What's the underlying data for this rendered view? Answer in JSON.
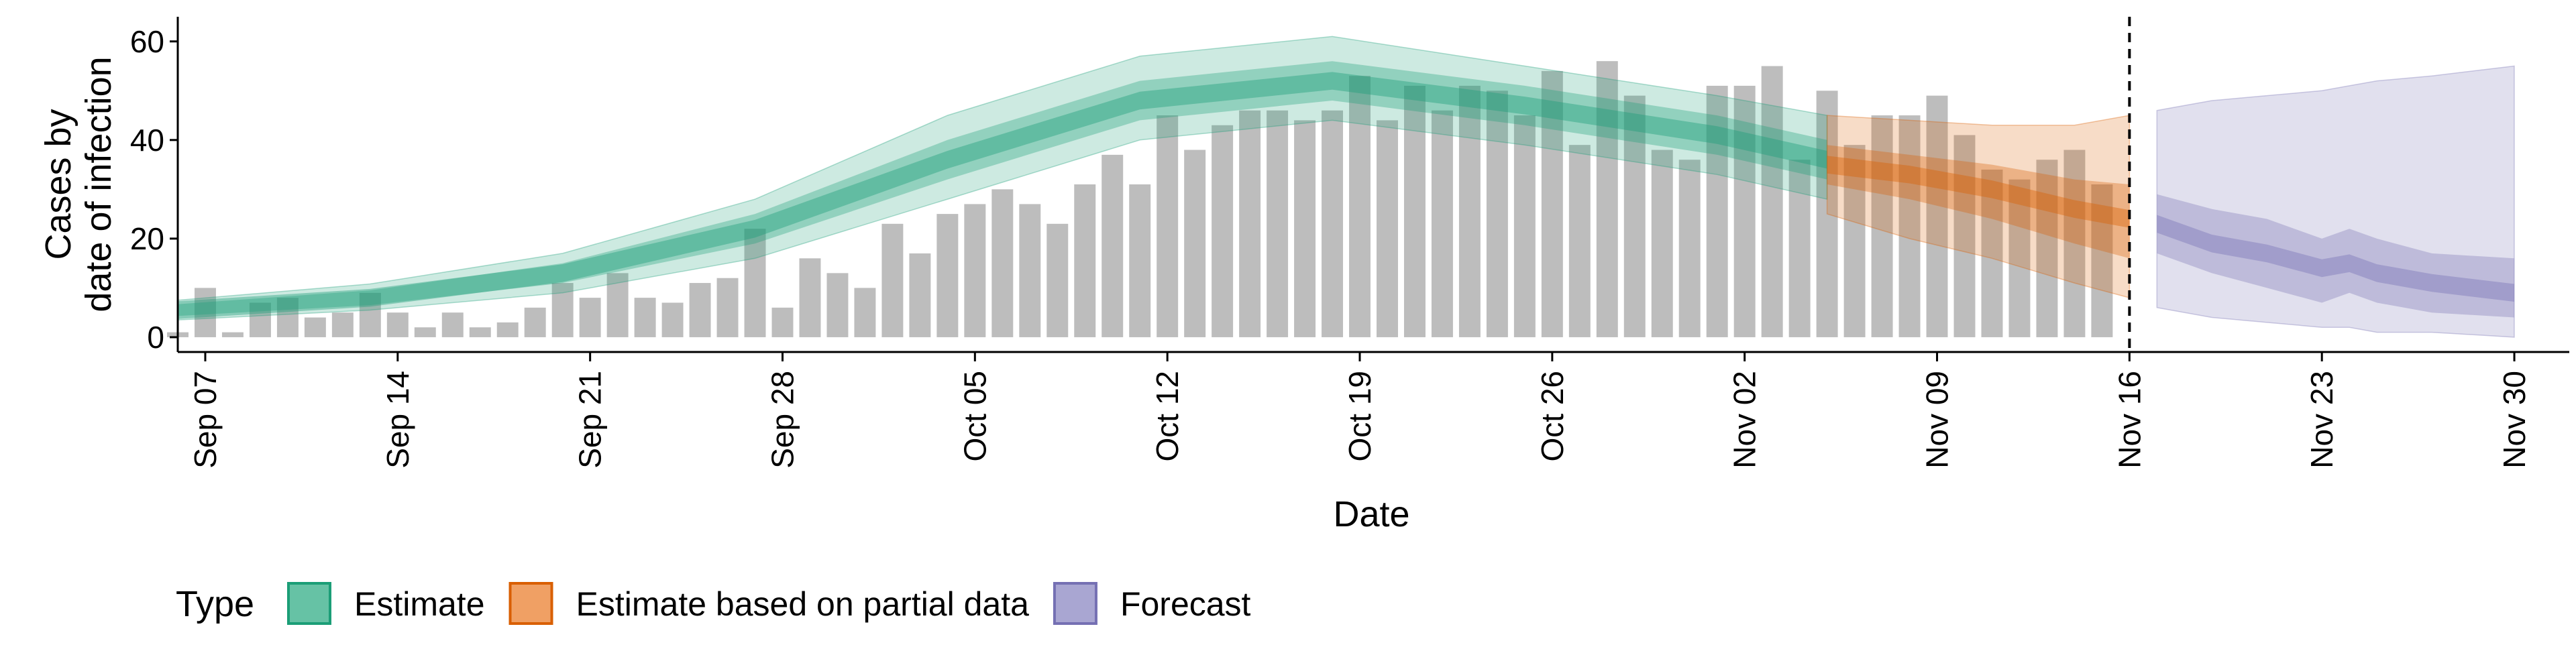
{
  "chart_data": {
    "type": "bar",
    "title": "",
    "xlabel": "Date",
    "ylabel": [
      "Cases by",
      "date of infection"
    ],
    "ylim": [
      -3,
      65
    ],
    "y_ticks": [
      0,
      20,
      40,
      60
    ],
    "x_start": "2020-09-06",
    "x_end": "2020-12-02",
    "x_ticks": [
      {
        "date": "2020-09-07",
        "label": "Sep 07"
      },
      {
        "date": "2020-09-14",
        "label": "Sep 14"
      },
      {
        "date": "2020-09-21",
        "label": "Sep 21"
      },
      {
        "date": "2020-09-28",
        "label": "Sep 28"
      },
      {
        "date": "2020-10-05",
        "label": "Oct 05"
      },
      {
        "date": "2020-10-12",
        "label": "Oct 12"
      },
      {
        "date": "2020-10-19",
        "label": "Oct 19"
      },
      {
        "date": "2020-10-26",
        "label": "Oct 26"
      },
      {
        "date": "2020-11-02",
        "label": "Nov 02"
      },
      {
        "date": "2020-11-09",
        "label": "Nov 09"
      },
      {
        "date": "2020-11-16",
        "label": "Nov 16"
      },
      {
        "date": "2020-11-23",
        "label": "Nov 23"
      },
      {
        "date": "2020-11-30",
        "label": "Nov 30"
      }
    ],
    "grid": false,
    "legend_position": "bottom-left",
    "vline_date": "2020-11-16",
    "bars": {
      "color": "#bdbdbd",
      "start_date": "2020-09-06",
      "values": [
        1,
        10,
        1,
        7,
        8,
        4,
        5,
        9,
        5,
        2,
        5,
        2,
        3,
        6,
        11,
        8,
        13,
        8,
        7,
        11,
        12,
        22,
        6,
        16,
        13,
        10,
        23,
        17,
        25,
        27,
        30,
        27,
        23,
        31,
        37,
        31,
        45,
        38,
        43,
        46,
        46,
        44,
        46,
        53,
        44,
        51,
        46,
        51,
        50,
        45,
        54,
        39,
        56,
        49,
        38,
        36,
        51,
        51,
        55,
        36,
        50,
        39,
        45,
        45,
        49,
        41,
        34,
        32,
        36,
        38,
        31
      ]
    },
    "legend": {
      "title": "Type",
      "items": [
        {
          "label": "Estimate",
          "fill": "#66c2a5",
          "stroke": "#1b9e77"
        },
        {
          "label": "Estimate based on partial data",
          "fill": "#f0a064",
          "stroke": "#d95f02"
        },
        {
          "label": "Forecast",
          "fill": "#a9a6d2",
          "stroke": "#7570b3"
        }
      ]
    },
    "series": [
      {
        "name": "Estimate",
        "color": "#1b9e77",
        "x": [
          "2020-09-06",
          "2020-09-13",
          "2020-09-20",
          "2020-09-27",
          "2020-10-04",
          "2020-10-11",
          "2020-10-18",
          "2020-10-25",
          "2020-11-01",
          "2020-11-05"
        ],
        "median": [
          5.5,
          8,
          13,
          22,
          36,
          48,
          52,
          47,
          41,
          36
        ],
        "inner_lower": [
          4.3,
          6.5,
          11,
          19,
          32,
          44,
          48,
          43,
          37,
          32
        ],
        "inner_upper": [
          6.7,
          9.5,
          15,
          25,
          40,
          52,
          56,
          51,
          45,
          40
        ],
        "outer_lower": [
          3.5,
          5.5,
          9,
          16,
          28,
          40,
          44,
          39,
          33,
          28
        ],
        "outer_upper": [
          7.5,
          10.8,
          17,
          28,
          45,
          57,
          61,
          55,
          49,
          45
        ]
      },
      {
        "name": "Estimate based on partial data",
        "color": "#d95f02",
        "x": [
          "2020-11-05",
          "2020-11-08",
          "2020-11-11",
          "2020-11-14",
          "2020-11-16"
        ],
        "median": [
          35,
          33,
          30,
          26,
          24
        ],
        "inner_lower": [
          31,
          28,
          24,
          19,
          16
        ],
        "inner_upper": [
          39,
          37,
          35,
          32,
          31
        ],
        "outer_lower": [
          25,
          20,
          16,
          11,
          8
        ],
        "outer_upper": [
          45,
          44,
          43,
          43,
          45
        ]
      },
      {
        "name": "Forecast",
        "color": "#7570b3",
        "x": [
          "2020-11-17",
          "2020-11-19",
          "2020-11-21",
          "2020-11-23",
          "2020-11-24",
          "2020-11-25",
          "2020-11-27",
          "2020-11-30"
        ],
        "median": [
          23,
          19,
          17,
          14,
          15,
          13,
          11,
          9
        ],
        "inner_lower": [
          17,
          13,
          10,
          7,
          9,
          7,
          5,
          4
        ],
        "inner_upper": [
          29,
          26,
          24,
          20,
          22,
          20,
          17,
          16
        ],
        "outer_lower": [
          6,
          4,
          3,
          2,
          2,
          1,
          1,
          0
        ],
        "outer_upper": [
          46,
          48,
          49,
          50,
          51,
          52,
          53,
          55
        ]
      }
    ]
  }
}
